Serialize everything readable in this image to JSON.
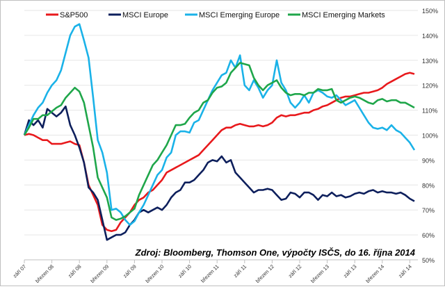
{
  "chart_data": {
    "type": "line",
    "title": "",
    "xlabel": "",
    "ylabel": "",
    "x_start": "2007-09",
    "x_frequency": "monthly",
    "x_ticks": [
      "září 07",
      "březen 08",
      "září 08",
      "březen 09",
      "září 09",
      "březen 10",
      "září 10",
      "březen 11",
      "září 11",
      "březen 12",
      "září 12",
      "březen 13",
      "září 13",
      "březen 14",
      "září 14"
    ],
    "y_ticks": [
      "50%",
      "60%",
      "70%",
      "80%",
      "90%",
      "100%",
      "110%",
      "120%",
      "130%",
      "140%",
      "150%"
    ],
    "ylim": [
      50,
      150
    ],
    "grid": true,
    "legend_position": "top",
    "annotation": "Zdroj: Bloomberg, Thomson One, výpočty ISČS, do 16. října 2014",
    "series": [
      {
        "name": "S&P500",
        "color": "#e8191c",
        "values": [
          100,
          100.5,
          100,
          99,
          98,
          98,
          96.5,
          96.5,
          96.5,
          97,
          97.5,
          96.5,
          96,
          89,
          80,
          76,
          72,
          64,
          62,
          61.5,
          62,
          65,
          67,
          69,
          72,
          74,
          75,
          77,
          78,
          80,
          82,
          85,
          86,
          87,
          88,
          89,
          90,
          91,
          92,
          94,
          96,
          98,
          100,
          102,
          103,
          103,
          104,
          104.5,
          104,
          103.5,
          103.5,
          104,
          103.5,
          104,
          105,
          107,
          108,
          107.5,
          108,
          108,
          108.5,
          109,
          109,
          110,
          110.5,
          111.5,
          112,
          113,
          114,
          115,
          115.5,
          115.5,
          116,
          116.5,
          117,
          117,
          117.5,
          118,
          119,
          120.5,
          121.5,
          122.5,
          123.5,
          124.5,
          125,
          124.5
        ]
      },
      {
        "name": "MSCI Europe",
        "color": "#0d1f5c",
        "values": [
          100,
          106,
          104,
          106,
          103,
          110.5,
          109,
          107.5,
          109,
          111.5,
          104,
          100,
          95,
          89,
          79,
          77,
          74,
          66,
          58,
          59,
          60,
          60,
          61,
          64,
          66,
          69,
          70,
          69,
          70,
          71,
          70,
          72,
          75,
          77,
          78,
          81,
          81,
          82,
          84,
          86,
          89,
          90,
          89.5,
          91.5,
          89,
          90,
          85,
          83,
          81,
          79,
          77,
          78,
          78,
          78.5,
          78,
          76,
          74,
          74.5,
          77,
          76.5,
          75,
          77,
          77,
          76,
          74,
          76,
          75.5,
          77,
          75.5,
          76,
          75,
          75.5,
          76.5,
          77,
          76.5,
          77.5,
          78,
          77,
          77.5,
          77,
          77,
          76.5,
          77,
          76,
          74.5,
          73.5
        ]
      },
      {
        "name": "MSCI Emerging Europe",
        "color": "#1ab2e8",
        "values": [
          100,
          104,
          108,
          111,
          113,
          117,
          120,
          122,
          126,
          133,
          140,
          143.5,
          144.5,
          138,
          131,
          115,
          98,
          93,
          85,
          70,
          70.5,
          69,
          66,
          64,
          65.5,
          69,
          72,
          76,
          80,
          84,
          86,
          91,
          93,
          100,
          101.5,
          101.5,
          101,
          105,
          106,
          110,
          114,
          118,
          121,
          124,
          125,
          130,
          127,
          132,
          120,
          118,
          122,
          119,
          115,
          118,
          120,
          130,
          121,
          118,
          113,
          111,
          113,
          116,
          113,
          117,
          118,
          117,
          115.5,
          115,
          116,
          114,
          112,
          113,
          114,
          111,
          108,
          105,
          103,
          102.5,
          103,
          102,
          104,
          102,
          101,
          99,
          97,
          94
        ]
      },
      {
        "name": "MSCI Emerging Markets",
        "color": "#1fa64a",
        "values": [
          100,
          103,
          106.5,
          106.5,
          108,
          108,
          109.5,
          111,
          112,
          115,
          117,
          119,
          117.5,
          113,
          104,
          95,
          83,
          79,
          75,
          67,
          66,
          66.5,
          67.5,
          69,
          70.5,
          76,
          80,
          84,
          88,
          90,
          93,
          96,
          100,
          104,
          104,
          104.5,
          107,
          109,
          110,
          113,
          114,
          117,
          119,
          119.5,
          121,
          125,
          127,
          129,
          128.5,
          128,
          123,
          120,
          118,
          120,
          121,
          122,
          119,
          117,
          116,
          116.5,
          116.5,
          116,
          117,
          117,
          118.5,
          118,
          118,
          118.5,
          114,
          113,
          114,
          115,
          115.5,
          115,
          114,
          113,
          112.5,
          114,
          114.5,
          113.5,
          114,
          114,
          113,
          113,
          112,
          111
        ]
      }
    ]
  }
}
